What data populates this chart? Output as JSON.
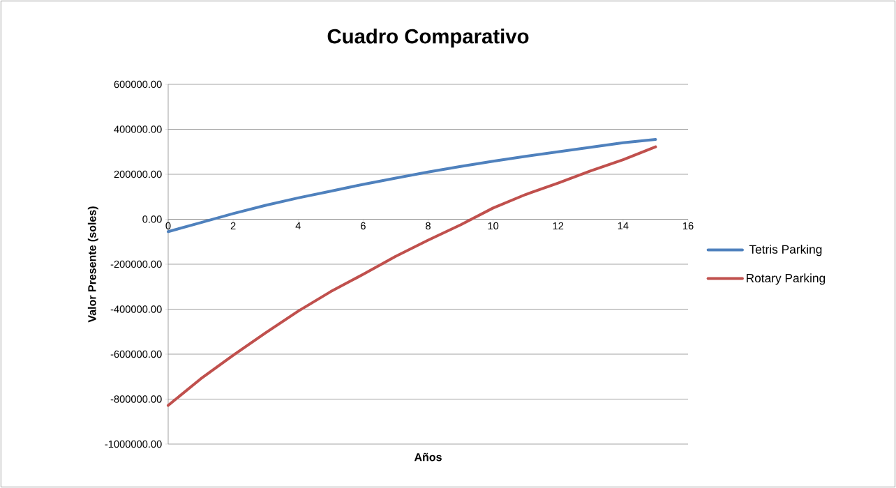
{
  "chart_data": {
    "type": "line",
    "title": "Cuadro Comparativo",
    "xlabel": "Años",
    "ylabel": "Valor Presente (soles)",
    "x": [
      0,
      1,
      2,
      3,
      4,
      5,
      6,
      7,
      8,
      9,
      10,
      11,
      12,
      13,
      14,
      15
    ],
    "series": [
      {
        "name": "Tetris Parking",
        "color": "#4f81bd",
        "values": [
          -55000,
          -15000,
          25000,
          62000,
          95000,
          125000,
          155000,
          183000,
          210000,
          235000,
          258000,
          280000,
          300000,
          320000,
          340000,
          355000
        ]
      },
      {
        "name": "Rotary Parking",
        "color": "#c0504d",
        "values": [
          -828000,
          -710000,
          -605000,
          -505000,
          -409000,
          -322000,
          -245000,
          -165000,
          -93000,
          -25000,
          50000,
          110000,
          161000,
          215000,
          265000,
          322000
        ]
      }
    ],
    "xlim": [
      0,
      16
    ],
    "xticks": [
      0,
      2,
      4,
      6,
      8,
      10,
      12,
      14,
      16
    ],
    "ylim": [
      -1000000,
      600000
    ],
    "yticks": [
      {
        "value": -1000000,
        "label": "-1000000.00"
      },
      {
        "value": -800000,
        "label": "-800000.00"
      },
      {
        "value": -600000,
        "label": "-600000.00"
      },
      {
        "value": -400000,
        "label": "-400000.00"
      },
      {
        "value": -200000,
        "label": "-200000.00"
      },
      {
        "value": 0,
        "label": "0.00"
      },
      {
        "value": 200000,
        "label": "200000.00"
      },
      {
        "value": 400000,
        "label": "400000.00"
      },
      {
        "value": 600000,
        "label": "600000.00"
      }
    ],
    "grid": "y",
    "legend": "right",
    "marker": "none",
    "line_style": "solid"
  }
}
